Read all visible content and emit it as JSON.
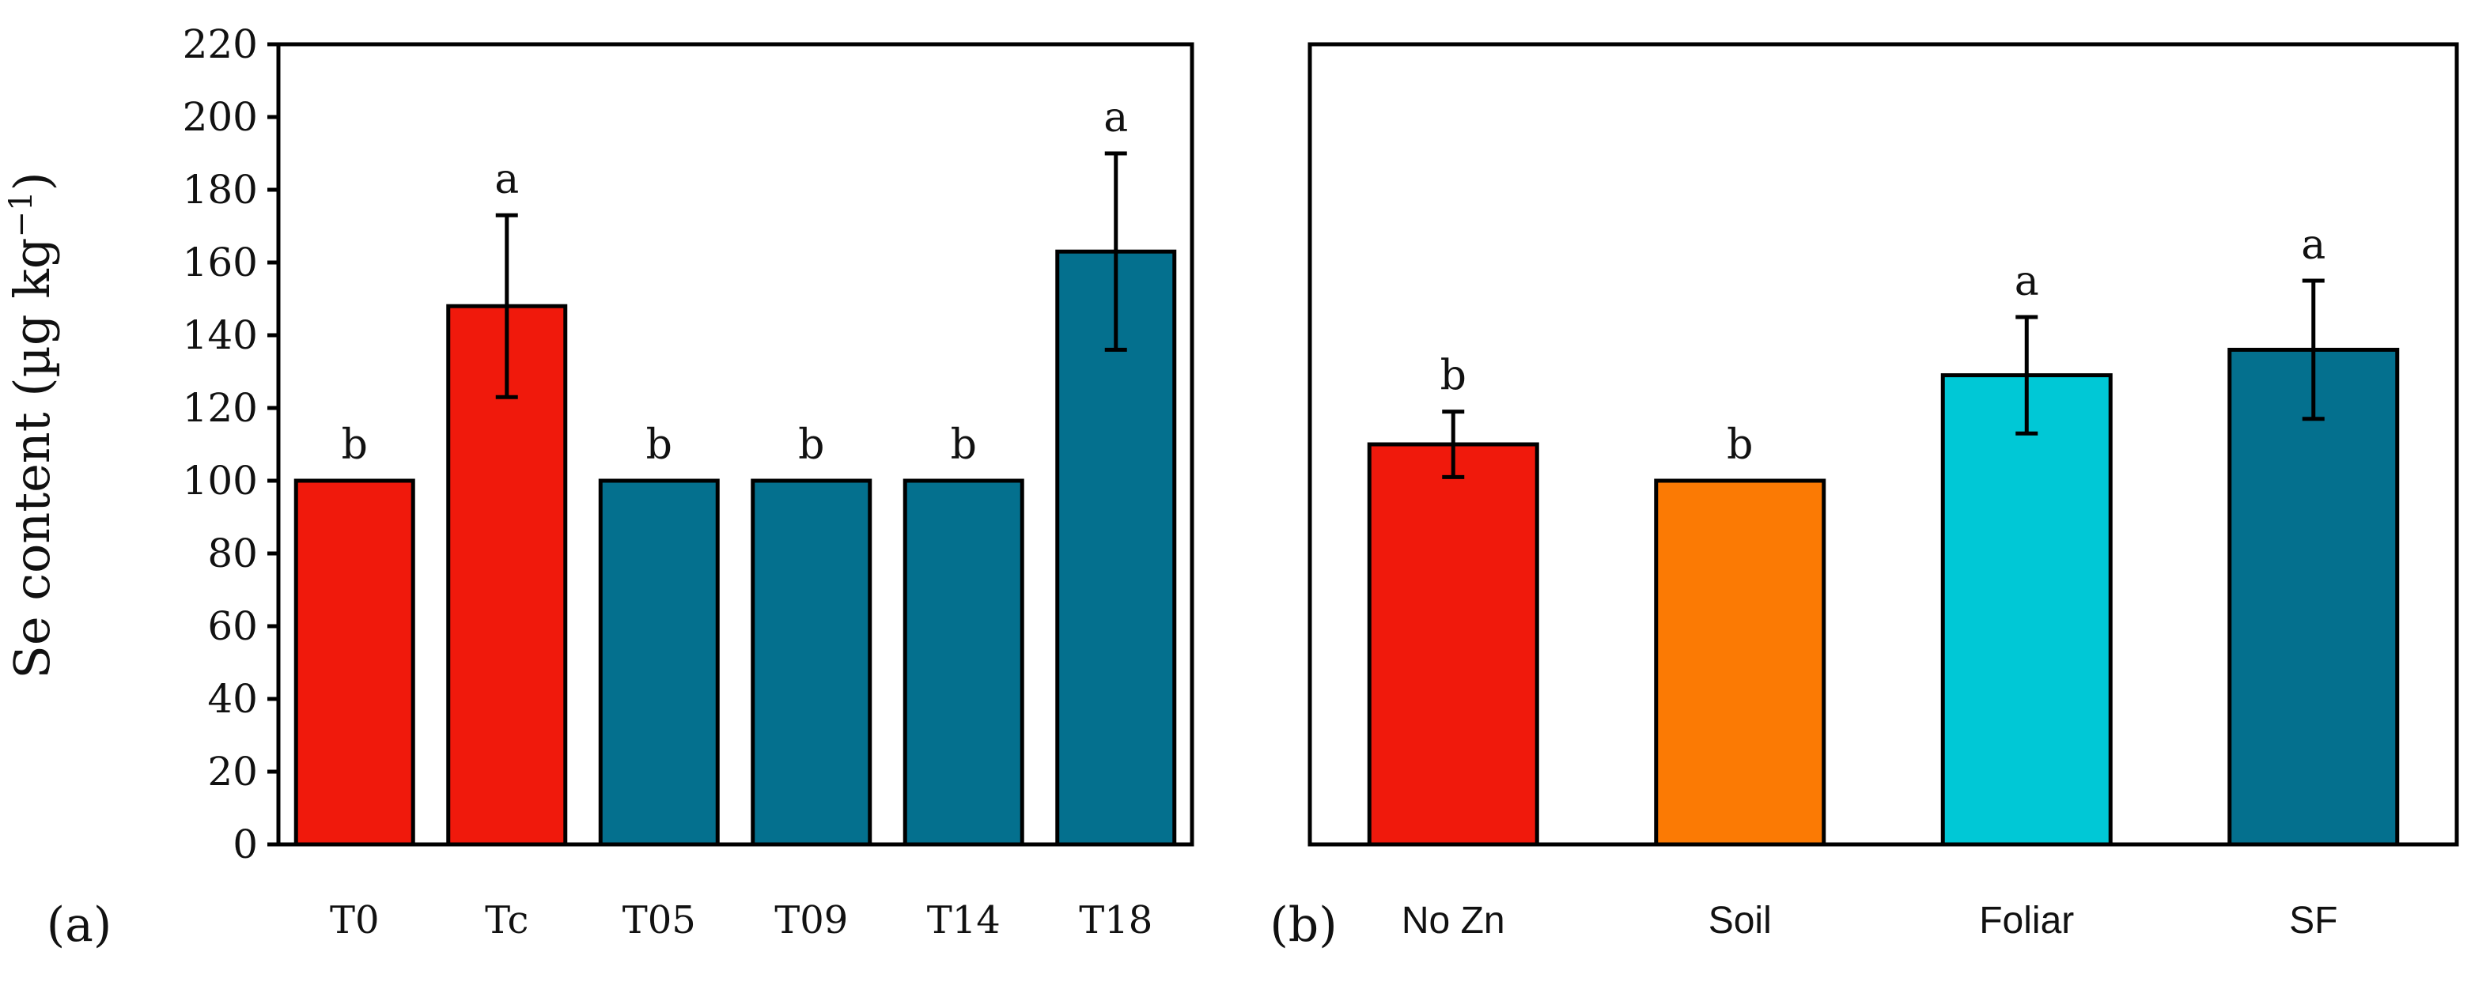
{
  "y_axis_label_main": "Se content (µg kg",
  "y_axis_label_sup": "−1",
  "y_axis_label_close": ")",
  "colors": {
    "red": "#f0190c",
    "orange": "#fb7a04",
    "cyan": "#00c8d6",
    "teal": "#04708e",
    "outline": "#000000"
  },
  "chart_data": [
    {
      "panel_label": "(a)",
      "type": "bar",
      "ylim": [
        0,
        220
      ],
      "yticks": [
        0,
        20,
        40,
        60,
        80,
        100,
        120,
        140,
        160,
        180,
        200,
        220
      ],
      "categories": [
        "T0",
        "Tc",
        "T05",
        "T09",
        "T14",
        "T18"
      ],
      "values": [
        100,
        148,
        100,
        100,
        100,
        163
      ],
      "errors": [
        null,
        25,
        null,
        null,
        null,
        27
      ],
      "letters": [
        "b",
        "a",
        "b",
        "b",
        "b",
        "a"
      ],
      "bar_colors": [
        "#f0190c",
        "#f0190c",
        "#04708e",
        "#04708e",
        "#04708e",
        "#04708e"
      ]
    },
    {
      "panel_label": "(b)",
      "type": "bar",
      "ylim": [
        0,
        220
      ],
      "categories": [
        "No Zn",
        "Soil",
        "Foliar",
        "SF"
      ],
      "values": [
        110,
        100,
        129,
        136
      ],
      "errors": [
        9,
        null,
        16,
        19
      ],
      "letters": [
        "b",
        "b",
        "a",
        "a"
      ],
      "bar_colors": [
        "#f0190c",
        "#fb7a04",
        "#00c8d6",
        "#04708e"
      ]
    }
  ]
}
